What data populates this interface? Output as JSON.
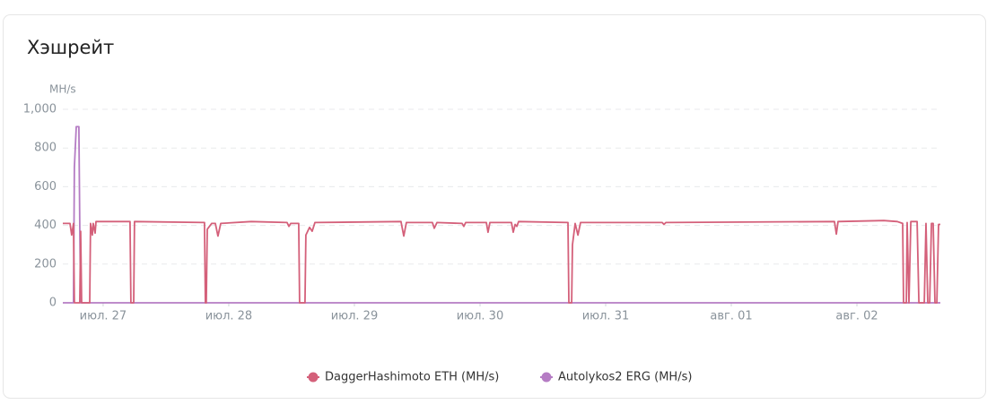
{
  "chart_data": {
    "type": "line",
    "title": "Хэшрейт",
    "y_label": "MH/s",
    "xlim": [
      -0.321,
      6.664
    ],
    "xticks": [
      {
        "value": 0,
        "label": "июл. 27"
      },
      {
        "value": 1,
        "label": "июл. 28"
      },
      {
        "value": 2,
        "label": "июл. 29"
      },
      {
        "value": 3,
        "label": "июл. 30"
      },
      {
        "value": 4,
        "label": "июл. 31"
      },
      {
        "value": 5,
        "label": "авг. 01"
      },
      {
        "value": 6,
        "label": "авг. 02"
      }
    ],
    "ylim": [
      0,
      1000
    ],
    "yticks": [
      0,
      200,
      400,
      600,
      800,
      {
        "value": 1000,
        "label": "1,000"
      }
    ],
    "grid": true,
    "legend": "bottom",
    "series": [
      {
        "name": "DaggerHashimoto ETH (MH/s)",
        "color": "#d4607a",
        "x": [
          -0.321,
          -0.264,
          -0.25,
          -0.236,
          -0.229,
          -0.186,
          -0.179,
          -0.171,
          -0.107,
          -0.1,
          -0.086,
          -0.079,
          -0.064,
          -0.057,
          0.214,
          0.221,
          0.243,
          0.25,
          0.807,
          0.814,
          0.821,
          0.829,
          0.864,
          0.893,
          0.914,
          0.936,
          1.179,
          1.464,
          1.479,
          1.493,
          1.557,
          1.564,
          1.607,
          1.614,
          1.643,
          1.664,
          1.686,
          2.371,
          2.393,
          2.414,
          2.621,
          2.636,
          2.657,
          2.857,
          2.871,
          2.886,
          3.05,
          3.064,
          3.079,
          3.25,
          3.264,
          3.279,
          3.293,
          3.307,
          3.7,
          3.707,
          3.729,
          3.736,
          3.757,
          3.779,
          3.8,
          4.45,
          4.464,
          4.479,
          5.821,
          5.836,
          5.85,
          6.214,
          6.321,
          6.364,
          6.371,
          6.393,
          6.4,
          6.414,
          6.429,
          6.479,
          6.493,
          6.536,
          6.55,
          6.564,
          6.579,
          6.593,
          6.607,
          6.621,
          6.636,
          6.65,
          6.664
        ],
        "values": [
          410,
          410,
          350,
          410,
          0,
          0,
          370,
          0,
          0,
          410,
          350,
          410,
          360,
          420,
          420,
          0,
          0,
          420,
          415,
          0,
          0,
          380,
          410,
          410,
          345,
          410,
          420,
          415,
          395,
          410,
          410,
          0,
          0,
          350,
          390,
          370,
          415,
          420,
          345,
          415,
          415,
          385,
          415,
          410,
          395,
          415,
          415,
          365,
          415,
          415,
          365,
          405,
          395,
          420,
          415,
          0,
          0,
          300,
          410,
          350,
          415,
          415,
          405,
          415,
          420,
          355,
          420,
          425,
          420,
          410,
          0,
          0,
          415,
          0,
          420,
          420,
          0,
          0,
          410,
          0,
          0,
          410,
          410,
          0,
          0,
          405,
          405
        ]
      },
      {
        "name": "Autolykos2 ERG (MH/s)",
        "color": "#b57cc4",
        "x": [
          -0.321,
          -0.236,
          -0.229,
          -0.214,
          -0.193,
          -0.186,
          -0.179,
          6.664
        ],
        "values": [
          0,
          0,
          700,
          910,
          910,
          400,
          0,
          0
        ]
      }
    ]
  }
}
